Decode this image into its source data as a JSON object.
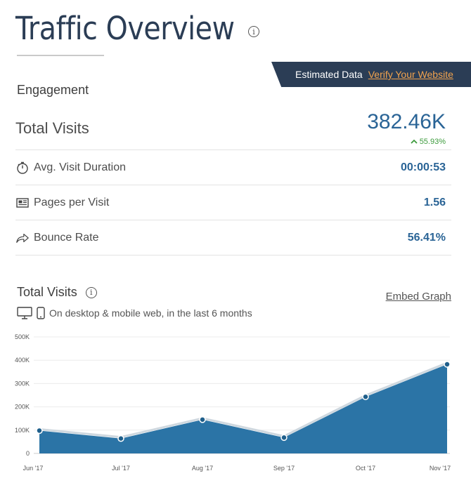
{
  "header": {
    "title": "Traffic Overview",
    "info_icon": "info-icon"
  },
  "banner": {
    "estimated_label": "Estimated Data",
    "verify_label": "Verify Your Website",
    "bg_color": "#2b3d55",
    "link_color": "#f2a34d"
  },
  "engagement": {
    "section_label": "Engagement",
    "total_visits": {
      "label": "Total Visits",
      "value": "382.46K",
      "change": "55.93%",
      "change_icon": "arrow-up-icon"
    },
    "metrics": [
      {
        "label": "Avg. Visit Duration",
        "value": "00:00:53",
        "icon": "stopwatch-icon"
      },
      {
        "label": "Pages per Visit",
        "value": "1.56",
        "icon": "pages-icon"
      },
      {
        "label": "Bounce Rate",
        "value": "56.41%",
        "icon": "bounce-arrow-icon"
      }
    ]
  },
  "chart_section": {
    "title": "Total Visits",
    "embed_label": "Embed Graph",
    "subtitle": "On desktop & mobile web, in the last 6 months"
  },
  "chart_data": {
    "type": "area",
    "categories": [
      "Jun '17",
      "Jul '17",
      "Aug '17",
      "Sep '17",
      "Oct '17",
      "Nov '17"
    ],
    "values": [
      98000,
      64000,
      145000,
      68000,
      243000,
      382460
    ],
    "y_ticks": [
      "0",
      "100K",
      "200K",
      "300K",
      "400K",
      "500K"
    ],
    "ylim": [
      0,
      500000
    ],
    "grid": true,
    "fill_color": "#2b74a6",
    "line_color": "#cfd8df"
  }
}
